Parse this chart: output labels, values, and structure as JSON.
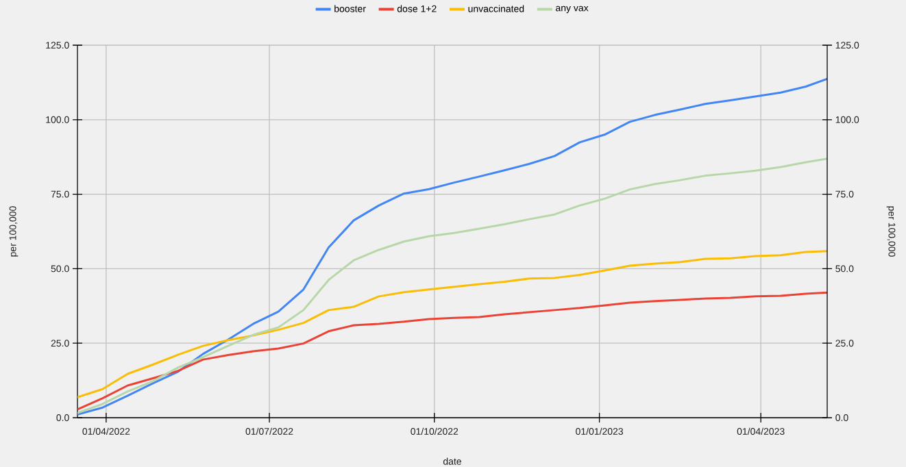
{
  "chart_data": {
    "type": "line",
    "x": [
      "2022-03-16",
      "2022-03-30",
      "2022-04-13",
      "2022-04-27",
      "2022-05-11",
      "2022-05-25",
      "2022-06-08",
      "2022-06-22",
      "2022-07-06",
      "2022-07-20",
      "2022-08-03",
      "2022-08-17",
      "2022-08-31",
      "2022-09-14",
      "2022-09-28",
      "2022-10-12",
      "2022-10-26",
      "2022-11-09",
      "2022-11-23",
      "2022-12-07",
      "2022-12-21",
      "2023-01-04",
      "2023-01-18",
      "2023-02-01",
      "2023-02-15",
      "2023-03-01",
      "2023-03-15",
      "2023-03-29",
      "2023-04-12",
      "2023-04-26",
      "2023-05-08"
    ],
    "series": [
      {
        "name": "booster",
        "color": "#4285f4",
        "values": [
          1.1,
          3.4,
          7.4,
          11.5,
          15.4,
          21.4,
          26.2,
          31.5,
          35.6,
          43.0,
          57.1,
          66.2,
          71.2,
          75.2,
          76.7,
          78.9,
          80.9,
          83.0,
          85.2,
          87.8,
          92.4,
          95.0,
          99.3,
          101.6,
          103.4,
          105.3,
          106.5,
          107.8,
          109.1,
          111.1,
          113.7
        ]
      },
      {
        "name": "dose 1+2",
        "color": "#ea4335",
        "values": [
          2.8,
          6.5,
          10.8,
          13.2,
          15.7,
          19.5,
          21.0,
          22.3,
          23.2,
          24.9,
          29.0,
          31.0,
          31.5,
          32.2,
          33.1,
          33.5,
          33.8,
          34.7,
          35.4,
          36.1,
          36.8,
          37.7,
          38.6,
          39.1,
          39.5,
          40.0,
          40.2,
          40.7,
          40.9,
          41.6,
          42.0
        ]
      },
      {
        "name": "unvaccinated",
        "color": "#fbbc04",
        "values": [
          6.9,
          9.6,
          14.7,
          17.8,
          21.1,
          24.1,
          26.0,
          27.6,
          29.5,
          31.8,
          36.1,
          37.2,
          40.7,
          42.1,
          43.0,
          43.9,
          44.8,
          45.6,
          46.7,
          46.9,
          47.9,
          49.4,
          51.0,
          51.7,
          52.2,
          53.3,
          53.5,
          54.2,
          54.5,
          55.6,
          55.9
        ]
      },
      {
        "name": "any vax",
        "color": "#b7d7a8",
        "values": [
          1.6,
          4.6,
          8.8,
          12.2,
          16.8,
          20.3,
          24.1,
          27.8,
          30.3,
          36.1,
          46.2,
          52.8,
          56.3,
          59.1,
          60.9,
          62.0,
          63.4,
          64.9,
          66.6,
          68.2,
          71.2,
          73.5,
          76.6,
          78.4,
          79.7,
          81.2,
          82.0,
          82.9,
          84.1,
          85.7,
          86.9
        ]
      }
    ],
    "xlabel": "date",
    "ylabel": "per 100,000",
    "y2label": "per 100,000",
    "xlim": [
      "2022-03-16",
      "2023-05-08"
    ],
    "xticks": [
      {
        "value": "2022-04-01",
        "label": "01/04/2022"
      },
      {
        "value": "2022-07-01",
        "label": "01/07/2022"
      },
      {
        "value": "2022-10-01",
        "label": "01/10/2022"
      },
      {
        "value": "2023-01-01",
        "label": "01/01/2023"
      },
      {
        "value": "2023-04-01",
        "label": "01/04/2023"
      }
    ],
    "ylim": [
      0,
      125
    ],
    "yticks": [
      {
        "value": 0,
        "label": "0.0"
      },
      {
        "value": 25,
        "label": "25.0"
      },
      {
        "value": 50,
        "label": "50.0"
      },
      {
        "value": 75,
        "label": "75.0"
      },
      {
        "value": 100,
        "label": "100.0"
      },
      {
        "value": 125,
        "label": "125.0"
      }
    ],
    "y2lim": [
      0,
      125
    ],
    "y2ticks": [
      {
        "value": 0,
        "label": "0.0"
      },
      {
        "value": 25,
        "label": "25.0"
      },
      {
        "value": 50,
        "label": "50.0"
      },
      {
        "value": 75,
        "label": "75.0"
      },
      {
        "value": 100,
        "label": "100.0"
      },
      {
        "value": 125,
        "label": "125.0"
      }
    ],
    "grid": true,
    "legend": "top",
    "line_style": "solid"
  }
}
